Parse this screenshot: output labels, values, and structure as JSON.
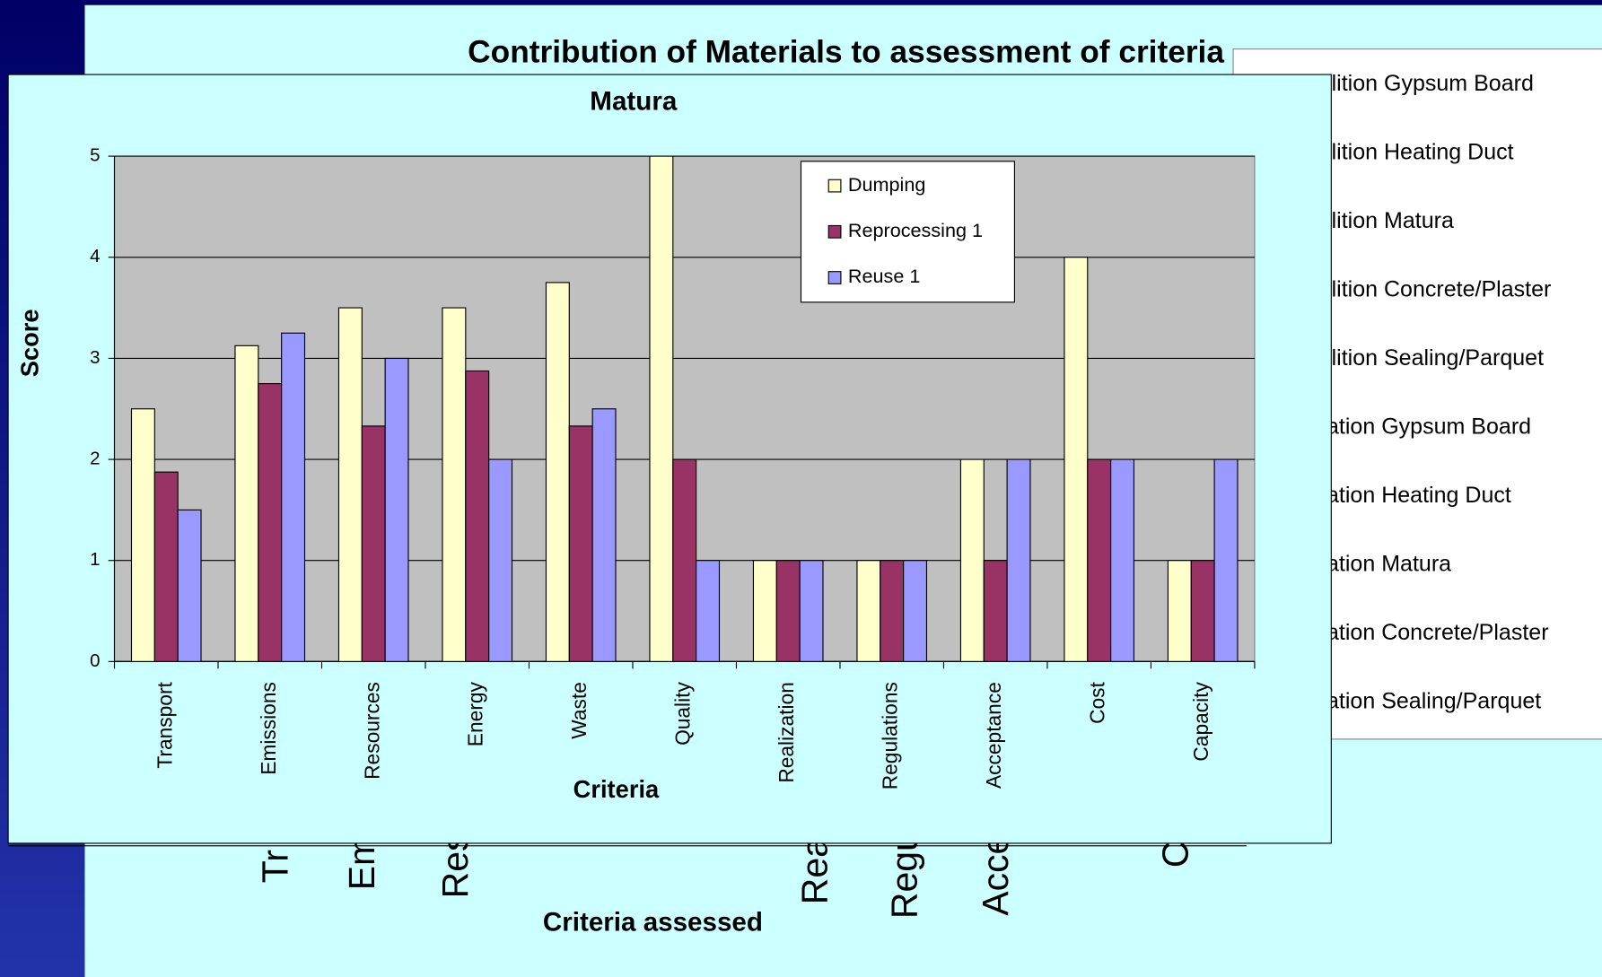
{
  "chart_data": {
    "type": "bar",
    "title": "Matura",
    "x_label": "Criteria",
    "y_label": "Score",
    "categories": [
      "Transport",
      "Emissions",
      "Resources",
      "Energy",
      "Waste",
      "Quality",
      "Realization",
      "Regulations",
      "Acceptance",
      "Cost",
      "Capacity"
    ],
    "series": [
      {
        "name": "Dumping",
        "color": "#ffffcc",
        "values": [
          2.5,
          3.125,
          3.5,
          3.5,
          3.75,
          5,
          1,
          1,
          2,
          4,
          1
        ]
      },
      {
        "name": "Reprocessing 1",
        "color": "#993366",
        "values": [
          1.875,
          2.75,
          2.33,
          2.875,
          2.33,
          2,
          1,
          1,
          1,
          2,
          1
        ]
      },
      {
        "name": "Reuse 1",
        "color": "#9999ff",
        "values": [
          1.5,
          3.25,
          3,
          2,
          2.5,
          1,
          1,
          1,
          2,
          2,
          2
        ]
      }
    ],
    "ylim": [
      0,
      5
    ],
    "yticks": [
      0,
      1,
      2,
      3,
      4,
      5
    ],
    "grid": true,
    "legend": "top-right",
    "plot_background": "#c0c0c0"
  },
  "background_chart": {
    "title": "Contribution of Materials to assessment of criteria",
    "x_label": "Criteria assessed",
    "category_fragments": [
      "Tr",
      "Em",
      "Res",
      "Rea",
      "Regu",
      "Acce",
      "C"
    ],
    "legend_entries": [
      "olition Gypsum Board",
      "olition Heating Duct",
      "olition Matura",
      "olition Concrete/Plaster",
      "olition Sealing/Parquet",
      "ration Gypsum Board",
      "ration Heating Duct",
      "ration Matura",
      "ration Concrete/Plaster",
      "ration Sealing/Parquet"
    ]
  }
}
